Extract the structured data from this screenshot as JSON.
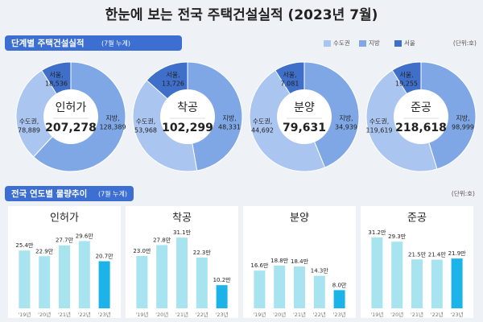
{
  "title": "한눈에 보는 전국 주택건설실적 (2023년 7월)",
  "sections": [
    {
      "title": "단계별 주택건설실적",
      "note": "(7월 누계)",
      "unit": "(단위:호)"
    },
    {
      "title": "전국 연도별 물량추이",
      "note": "(7월 누계)",
      "unit": "(단위:호)"
    }
  ],
  "legend": [
    {
      "name": "수도권",
      "color": "#a9c5f0"
    },
    {
      "name": "지방",
      "color": "#7fa7e6"
    },
    {
      "name": "서울",
      "color": "#3f6fc9"
    }
  ],
  "chart_data": [
    {
      "type": "pie",
      "title": "인허가",
      "total": 207278,
      "total_label": "207,278",
      "categories": [
        "수도권,",
        "지방,",
        "서울,"
      ],
      "values": [
        78889,
        128389,
        18536
      ],
      "value_labels": [
        "78,889",
        "128,389",
        "18,536"
      ],
      "colors": [
        "#a9c5f0",
        "#7fa7e6",
        "#3f6fc9"
      ]
    },
    {
      "type": "pie",
      "title": "착공",
      "total": 102299,
      "total_label": "102,299",
      "categories": [
        "수도권,",
        "지방,",
        "서울,"
      ],
      "values": [
        53968,
        48331,
        13726
      ],
      "value_labels": [
        "53,968",
        "48,331",
        "13,726"
      ],
      "colors": [
        "#a9c5f0",
        "#7fa7e6",
        "#3f6fc9"
      ]
    },
    {
      "type": "pie",
      "title": "분양",
      "total": 79631,
      "total_label": "79,631",
      "categories": [
        "수도권,",
        "지방,",
        "서울,"
      ],
      "values": [
        44692,
        34939,
        7081
      ],
      "value_labels": [
        "44,692",
        "34,939",
        "7,081"
      ],
      "colors": [
        "#a9c5f0",
        "#7fa7e6",
        "#3f6fc9"
      ]
    },
    {
      "type": "pie",
      "title": "준공",
      "total": 218618,
      "total_label": "218,618",
      "categories": [
        "수도권,",
        "지방,",
        "서울,"
      ],
      "values": [
        119619,
        98999,
        19255
      ],
      "value_labels": [
        "119,619",
        "98,999",
        "19,255"
      ],
      "colors": [
        "#a9c5f0",
        "#7fa7e6",
        "#3f6fc9"
      ]
    },
    {
      "type": "bar",
      "title": "인허가",
      "categories": [
        "'19년",
        "'20년",
        "'21년",
        "'22년",
        "'23년"
      ],
      "values": [
        25.4,
        22.9,
        27.7,
        29.6,
        20.7
      ],
      "value_labels": [
        "25.4만",
        "22.9만",
        "27.7만",
        "29.6만",
        "20.7만"
      ],
      "colors": [
        "#a8e3f0",
        "#a8e3f0",
        "#a8e3f0",
        "#a8e3f0",
        "#1cb3e8"
      ],
      "ylim": [
        0,
        40
      ]
    },
    {
      "type": "bar",
      "title": "착공",
      "categories": [
        "'19년",
        "'20년",
        "'21년",
        "'22년",
        "'23년"
      ],
      "values": [
        23.0,
        27.8,
        31.1,
        22.3,
        10.2
      ],
      "value_labels": [
        "23.0만",
        "27.8만",
        "31.1만",
        "22.3만",
        "10.2만"
      ],
      "colors": [
        "#a8e3f0",
        "#a8e3f0",
        "#a8e3f0",
        "#a8e3f0",
        "#1cb3e8"
      ],
      "ylim": [
        0,
        40
      ]
    },
    {
      "type": "bar",
      "title": "분양",
      "categories": [
        "'19년",
        "'20년",
        "'21년",
        "'22년",
        "'23년"
      ],
      "values": [
        16.6,
        18.8,
        18.4,
        14.3,
        8.0
      ],
      "value_labels": [
        "16.6만",
        "18.8만",
        "18.4만",
        "14.3만",
        "8.0만"
      ],
      "colors": [
        "#a8e3f0",
        "#a8e3f0",
        "#a8e3f0",
        "#a8e3f0",
        "#1cb3e8"
      ],
      "ylim": [
        0,
        40
      ]
    },
    {
      "type": "bar",
      "title": "준공",
      "categories": [
        "'19년",
        "'20년",
        "'21년",
        "'22년",
        "'23년"
      ],
      "values": [
        31.2,
        29.3,
        21.5,
        21.4,
        21.9
      ],
      "value_labels": [
        "31.2만",
        "29.3만",
        "21.5만",
        "21.4만",
        "21.9만"
      ],
      "colors": [
        "#a8e3f0",
        "#a8e3f0",
        "#a8e3f0",
        "#a8e3f0",
        "#1cb3e8"
      ],
      "ylim": [
        0,
        40
      ]
    }
  ]
}
